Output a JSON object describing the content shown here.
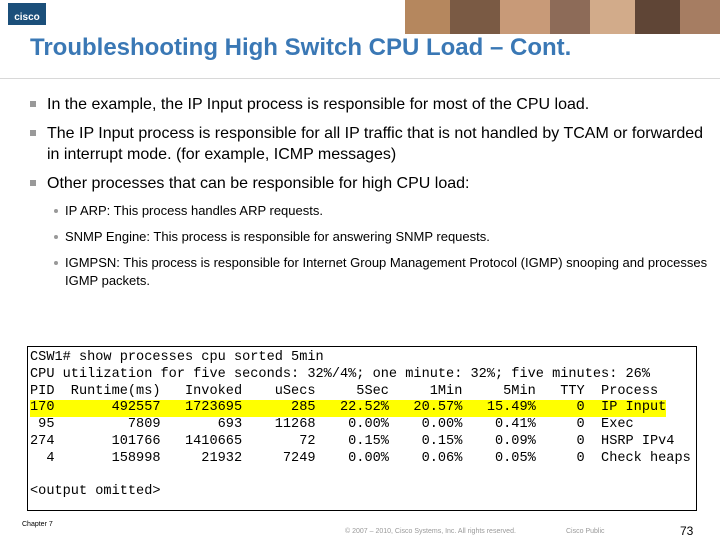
{
  "header": {
    "logo": "cisco",
    "title": "Troubleshooting High Switch CPU Load – Cont."
  },
  "bullets": [
    {
      "text": "In the example, the IP Input process is responsible for most of the CPU load."
    },
    {
      "text": "The IP Input process is responsible for all IP traffic that is not handled by TCAM or forwarded in interrupt mode. (for example, ICMP messages)"
    },
    {
      "text": "Other processes that can be responsible for high CPU load:",
      "subbullets": [
        "IP ARP: This process handles ARP requests.",
        "SNMP Engine: This process is responsible for answering SNMP requests.",
        "IGMPSN: This process is responsible for Internet Group Management Protocol (IGMP) snooping and processes IGMP packets."
      ]
    }
  ],
  "code": {
    "lines": [
      "CSW1# show processes cpu sorted 5min",
      "CPU utilization for five seconds: 32%/4%; one minute: 32%; five minutes: 26%",
      "PID  Runtime(ms)   Invoked    uSecs     5Sec     1Min     5Min   TTY  Process",
      "170       492557   1723695      285   22.52%   20.57%   15.49%     0  IP Input",
      " 95         7809       693    11268    0.00%    0.00%    0.41%     0  Exec",
      "274       101766   1410665       72    0.15%    0.15%    0.09%     0  HSRP IPv4",
      "  4       158998     21932     7249    0.00%    0.06%    0.05%     0  Check heaps",
      "",
      "<output omitted>"
    ],
    "highlighted_line": 3
  },
  "footer": {
    "chapter": "Chapter 7",
    "copyright": "© 2007 – 2010, Cisco Systems, Inc. All rights reserved.",
    "classification": "Cisco Public",
    "page": "73"
  }
}
